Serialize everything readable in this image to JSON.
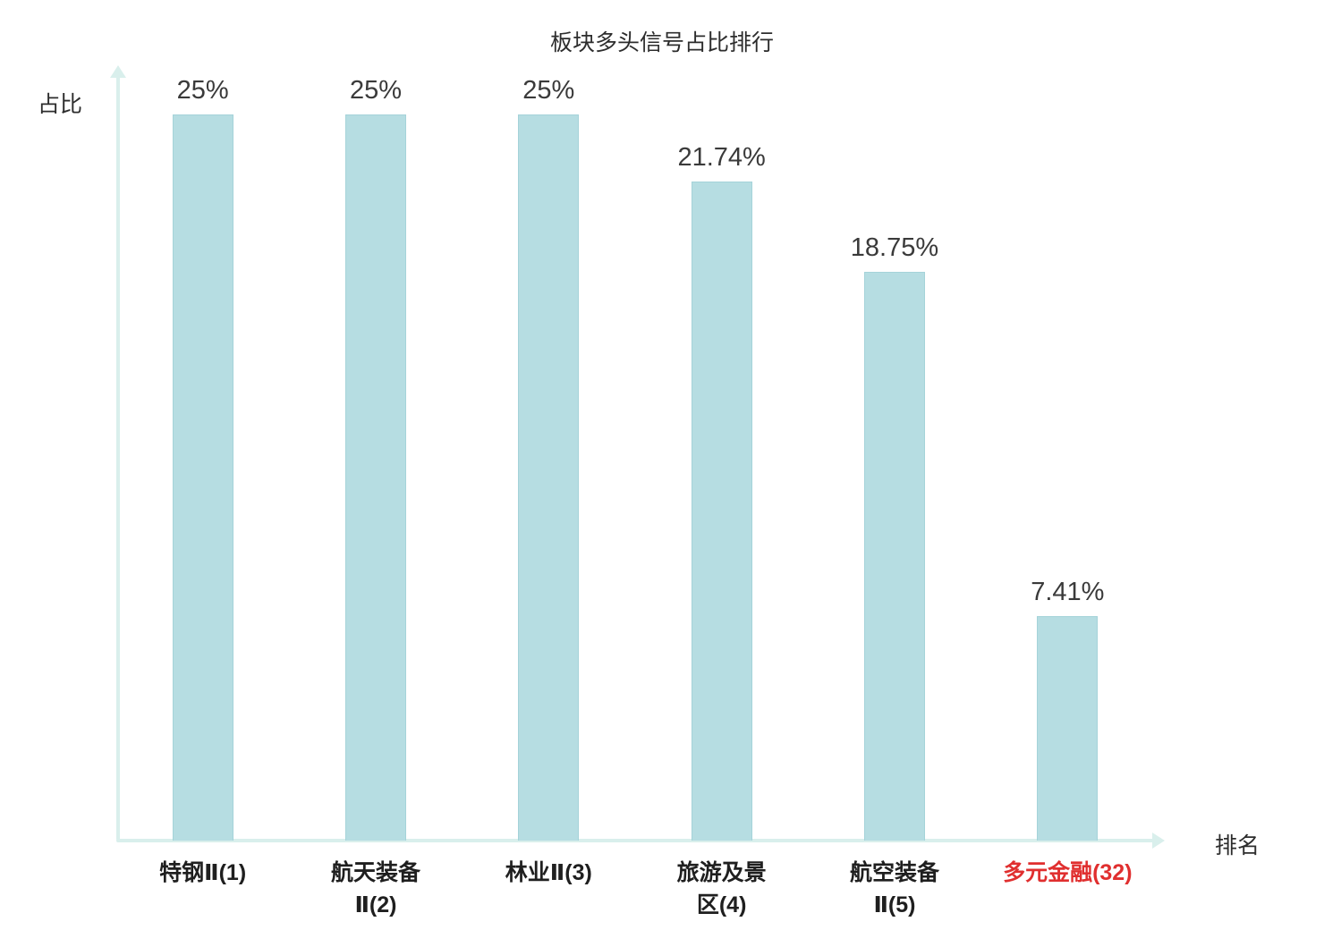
{
  "colors": {
    "bar_fill": "#b6dde2",
    "bar_border": "#a5d3d9",
    "axis": "#d9efec",
    "text": "#3a3a3a",
    "highlight": "#e02f2f"
  },
  "chart_data": {
    "type": "bar",
    "title": "板块多头信号占比排行",
    "xlabel": "排名",
    "ylabel": "占比",
    "ylim": [
      0,
      25
    ],
    "grid": false,
    "legend": "none",
    "categories": [
      "特钢Ⅱ(1)",
      "航天装备Ⅱ(2)",
      "林业Ⅱ(3)",
      "旅游及景区(4)",
      "航空装备Ⅱ(5)",
      "多元金融(32)"
    ],
    "display_categories": [
      "特钢Ⅱ(1)",
      "航天装备\nⅡ(2)",
      "林业Ⅱ(3)",
      "旅游及景\n区(4)",
      "航空装备\nⅡ(5)",
      "多元金融(32)"
    ],
    "values": [
      25,
      25,
      25,
      21.74,
      18.75,
      7.41
    ],
    "value_labels": [
      "25%",
      "25%",
      "25%",
      "21.74%",
      "18.75%",
      "7.41%"
    ],
    "highlight_category_index": 5
  }
}
